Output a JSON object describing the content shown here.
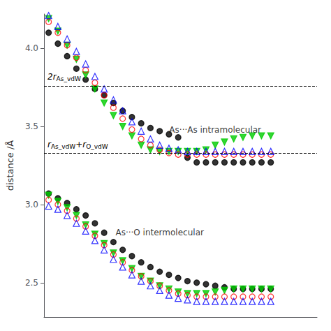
{
  "chart_data": {
    "type": "scatter",
    "ylabel": "distance /Å",
    "x": [
      0,
      1,
      2,
      3,
      4,
      5,
      6,
      7,
      8,
      9,
      10,
      11,
      12,
      13,
      14,
      15,
      16,
      17,
      18,
      19,
      20,
      21,
      22,
      23,
      24
    ],
    "xlim": [
      -0.5,
      29
    ],
    "xticks": [],
    "ylim": [
      2.28,
      4.22
    ],
    "yticks": [
      2.5,
      {
        "value": 3.0,
        "label": "3.0"
      },
      3.5,
      {
        "value": 4.0,
        "label": "4.0"
      }
    ],
    "tick_labels": "y",
    "grid": false,
    "series": [
      {
        "color": "black",
        "marker": "circle",
        "values": [
          4.1,
          4.03,
          3.95,
          3.87,
          3.8,
          3.74,
          3.7,
          3.65,
          3.6,
          3.56,
          3.52,
          3.49,
          3.47,
          3.45,
          3.43,
          3.3,
          3.27,
          3.27,
          3.27,
          3.27,
          3.27,
          3.27,
          3.27,
          3.27,
          3.27
        ]
      },
      {
        "color": "red",
        "marker": "open-circle",
        "values": [
          4.17,
          4.1,
          4.02,
          3.94,
          3.86,
          3.78,
          3.7,
          3.62,
          3.55,
          3.48,
          3.42,
          3.38,
          3.35,
          3.33,
          3.32,
          3.32,
          3.32,
          3.32,
          3.32,
          3.32,
          3.32,
          3.32,
          3.32,
          3.32,
          3.32
        ]
      },
      {
        "color": "blue",
        "marker": "open-triangle-up",
        "values": [
          4.21,
          4.14,
          4.06,
          3.98,
          3.9,
          3.82,
          3.74,
          3.67,
          3.6,
          3.53,
          3.47,
          3.42,
          3.38,
          3.36,
          3.35,
          3.34,
          3.34,
          3.34,
          3.34,
          3.34,
          3.34,
          3.34,
          3.34,
          3.34,
          3.34
        ]
      },
      {
        "color": "#00cc00",
        "marker": "triangle-down",
        "values": [
          4.19,
          4.11,
          4.02,
          3.93,
          3.83,
          3.74,
          3.65,
          3.57,
          3.5,
          3.44,
          3.38,
          3.35,
          3.34,
          3.34,
          3.34,
          3.34,
          3.34,
          3.35,
          3.38,
          3.4,
          3.42,
          3.43,
          3.44,
          3.44,
          3.44
        ]
      },
      {
        "color": "black",
        "marker": "circle",
        "values": [
          3.07,
          3.04,
          3.01,
          2.97,
          2.93,
          2.88,
          2.82,
          2.76,
          2.71,
          2.67,
          2.63,
          2.6,
          2.57,
          2.55,
          2.53,
          2.51,
          2.5,
          2.49,
          2.48,
          2.47,
          2.46,
          2.46,
          2.46,
          2.46,
          2.46
        ]
      },
      {
        "color": "red",
        "marker": "open-circle",
        "values": [
          3.03,
          3.0,
          2.96,
          2.91,
          2.86,
          2.8,
          2.74,
          2.68,
          2.63,
          2.58,
          2.54,
          2.51,
          2.48,
          2.45,
          2.43,
          2.42,
          2.41,
          2.41,
          2.41,
          2.41,
          2.41,
          2.41,
          2.41,
          2.41,
          2.41
        ]
      },
      {
        "color": "blue",
        "marker": "open-triangle-up",
        "values": [
          2.99,
          2.97,
          2.93,
          2.88,
          2.83,
          2.77,
          2.71,
          2.65,
          2.6,
          2.55,
          2.51,
          2.48,
          2.45,
          2.42,
          2.4,
          2.39,
          2.38,
          2.38,
          2.38,
          2.38,
          2.38,
          2.38,
          2.38,
          2.38,
          2.38
        ]
      },
      {
        "color": "#00cc00",
        "marker": "triangle-down",
        "values": [
          3.06,
          3.02,
          2.98,
          2.93,
          2.87,
          2.81,
          2.75,
          2.69,
          2.64,
          2.59,
          2.54,
          2.51,
          2.48,
          2.46,
          2.44,
          2.43,
          2.43,
          2.43,
          2.44,
          2.45,
          2.46,
          2.46,
          2.46,
          2.46,
          2.46
        ]
      }
    ],
    "hlines": [
      {
        "y": 3.76,
        "color": "black",
        "line_style": "dashed",
        "label": [
          {
            "text": "2r"
          },
          {
            "text": "As_vdW",
            "sub": true
          }
        ]
      },
      {
        "y": 3.335,
        "color": "black",
        "line_style": "dashed",
        "label": [
          {
            "text": "r"
          },
          {
            "text": "As_vdW",
            "sub": true
          },
          {
            "text": "+r"
          },
          {
            "text": "O_vdW",
            "sub": true
          }
        ]
      }
    ],
    "annotations": [
      {
        "text": "As···As intramolecular",
        "x": 18,
        "y": 3.48
      },
      {
        "text": "As···O intermolecular",
        "x": 12,
        "y": 2.82
      }
    ]
  }
}
